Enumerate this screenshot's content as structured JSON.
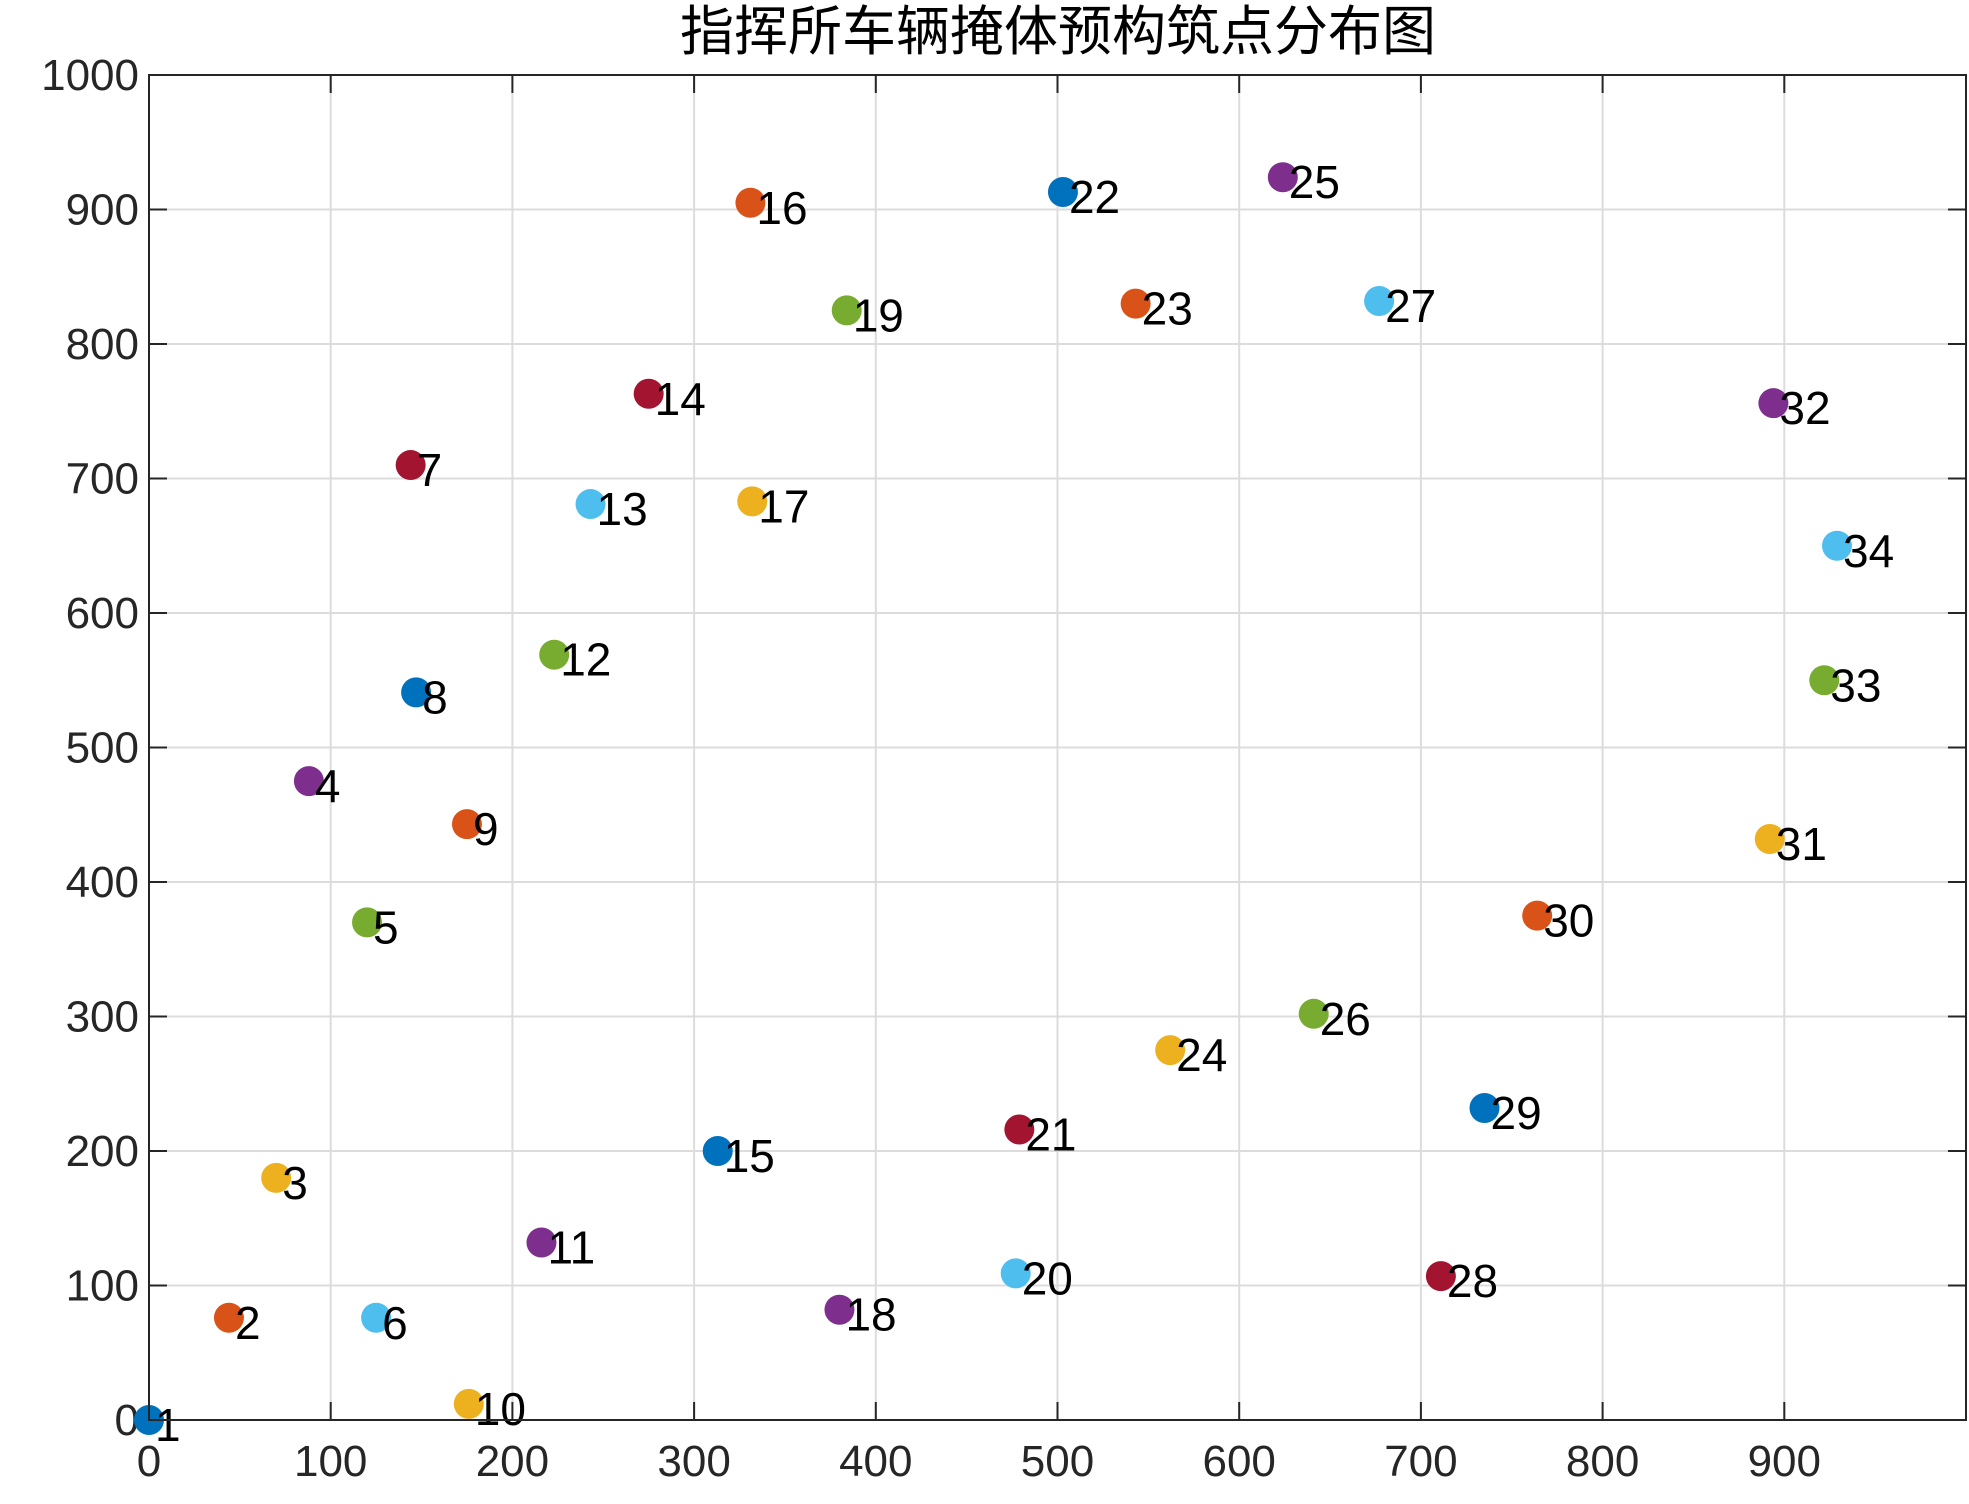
{
  "chart_data": {
    "type": "scatter",
    "title": "指挥所车辆掩体预构筑点分布图",
    "xlabel": "",
    "ylabel": "",
    "xlim": [
      0,
      1000
    ],
    "ylim": [
      0,
      1000
    ],
    "xticks": [
      0,
      100,
      200,
      300,
      400,
      500,
      600,
      700,
      800,
      900
    ],
    "yticks": [
      0,
      100,
      200,
      300,
      400,
      500,
      600,
      700,
      800,
      900,
      1000
    ],
    "grid": true,
    "color_cycle": [
      "#0072BD",
      "#D95319",
      "#EDB120",
      "#7E2F8E",
      "#77AC30",
      "#4DBEEE",
      "#A2142F"
    ],
    "points": [
      {
        "label": "1",
        "x": 0,
        "y": 0
      },
      {
        "label": "2",
        "x": 44,
        "y": 76
      },
      {
        "label": "3",
        "x": 70,
        "y": 180
      },
      {
        "label": "4",
        "x": 88,
        "y": 475
      },
      {
        "label": "5",
        "x": 120,
        "y": 370
      },
      {
        "label": "6",
        "x": 125,
        "y": 76
      },
      {
        "label": "7",
        "x": 144,
        "y": 710
      },
      {
        "label": "8",
        "x": 147,
        "y": 541
      },
      {
        "label": "9",
        "x": 175,
        "y": 443
      },
      {
        "label": "10",
        "x": 176,
        "y": 12
      },
      {
        "label": "11",
        "x": 216,
        "y": 132
      },
      {
        "label": "12",
        "x": 223,
        "y": 569
      },
      {
        "label": "13",
        "x": 243,
        "y": 681
      },
      {
        "label": "14",
        "x": 275,
        "y": 763
      },
      {
        "label": "15",
        "x": 313,
        "y": 200
      },
      {
        "label": "16",
        "x": 331,
        "y": 905
      },
      {
        "label": "17",
        "x": 332,
        "y": 683
      },
      {
        "label": "18",
        "x": 380,
        "y": 82
      },
      {
        "label": "19",
        "x": 384,
        "y": 825
      },
      {
        "label": "20",
        "x": 477,
        "y": 109
      },
      {
        "label": "21",
        "x": 479,
        "y": 216
      },
      {
        "label": "22",
        "x": 503,
        "y": 913
      },
      {
        "label": "23",
        "x": 543,
        "y": 830
      },
      {
        "label": "24",
        "x": 562,
        "y": 275
      },
      {
        "label": "25",
        "x": 624,
        "y": 924
      },
      {
        "label": "26",
        "x": 641,
        "y": 302
      },
      {
        "label": "27",
        "x": 677,
        "y": 832
      },
      {
        "label": "28",
        "x": 711,
        "y": 107
      },
      {
        "label": "29",
        "x": 735,
        "y": 232
      },
      {
        "label": "30",
        "x": 764,
        "y": 375
      },
      {
        "label": "31",
        "x": 892,
        "y": 432
      },
      {
        "label": "32",
        "x": 894,
        "y": 756
      },
      {
        "label": "33",
        "x": 922,
        "y": 550
      },
      {
        "label": "34",
        "x": 929,
        "y": 650
      }
    ]
  }
}
